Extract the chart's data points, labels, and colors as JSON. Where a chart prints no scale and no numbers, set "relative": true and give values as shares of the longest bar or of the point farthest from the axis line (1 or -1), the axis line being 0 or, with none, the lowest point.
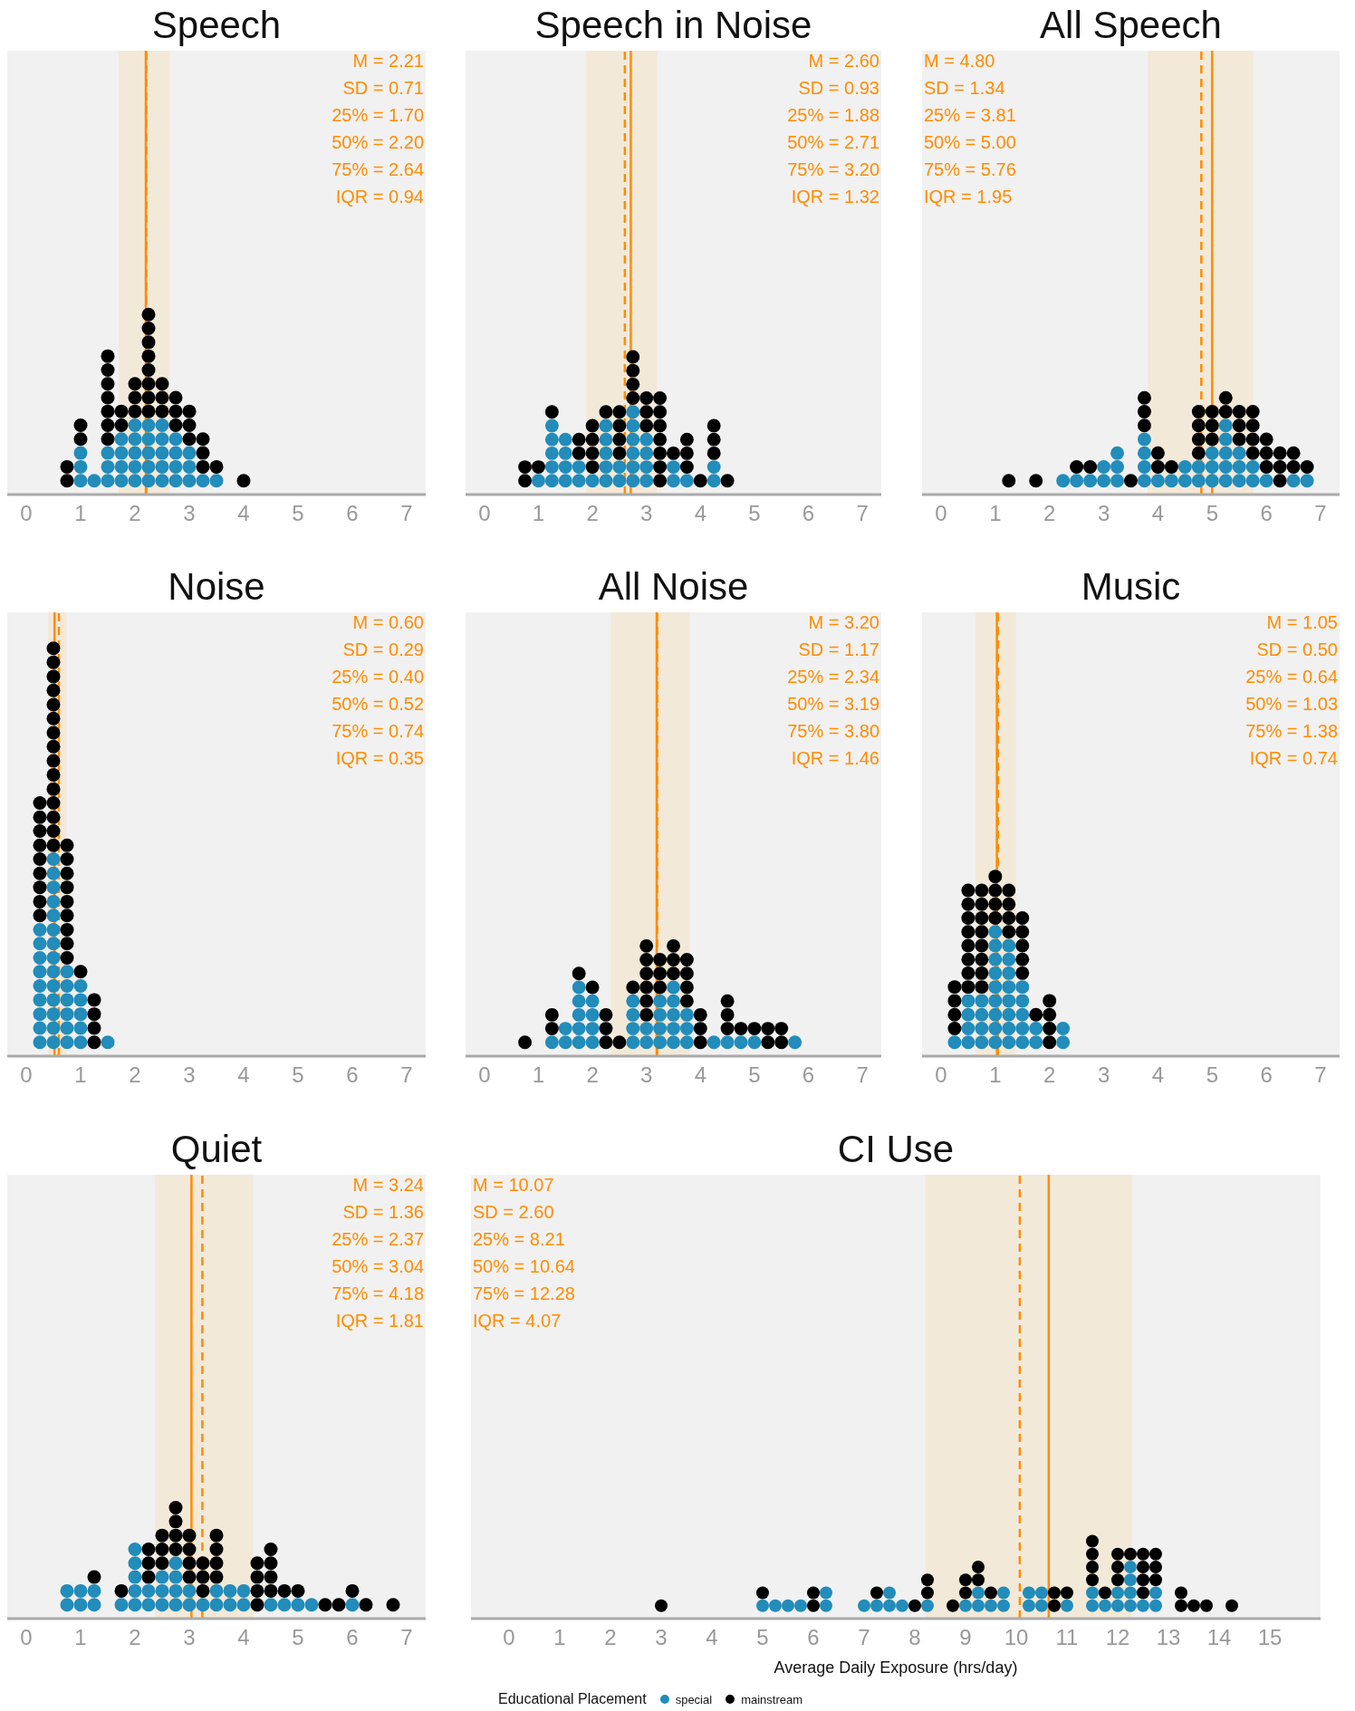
{
  "chart_data": [
    {
      "type": "scatter",
      "title": "Speech",
      "relative": true,
      "marker": "circle",
      "xlim": [
        -0.35,
        7.35
      ],
      "xticks": [
        0,
        1,
        2,
        3,
        4,
        5,
        6,
        7
      ],
      "bands": [
        {
          "axis": "x",
          "from": 1.7,
          "to": 2.64,
          "color": "#f3e9d9"
        }
      ],
      "ref_lines": [
        {
          "axis": "x",
          "value": 2.2,
          "line_style": "solid",
          "color": "#ff8c00"
        },
        {
          "axis": "x",
          "value": 2.21,
          "line_style": "dashed",
          "color": "#ff8c00"
        }
      ],
      "annotations": [
        "M = 2.21",
        "SD = 0.71",
        "25% = 1.70",
        "50% = 2.20",
        "75% = 2.64",
        "IQR = 0.94"
      ],
      "series": [
        {
          "color": "#228cba",
          "x": [
            1,
            1,
            1,
            1.25,
            1.5,
            1.5,
            1.5,
            1.75,
            1.75,
            1.75,
            1.75,
            2,
            2,
            2,
            2,
            2,
            2.25,
            2.25,
            2.25,
            2.25,
            2.25,
            2.5,
            2.5,
            2.5,
            2.5,
            2.5,
            2.75,
            2.75,
            2.75,
            2.75,
            3,
            3,
            3,
            3.25,
            3.5
          ],
          "values": [
            0.077,
            0.154,
            0.231,
            0.077,
            0.077,
            0.154,
            0.231,
            0.077,
            0.154,
            0.231,
            0.308,
            0.077,
            0.154,
            0.231,
            0.308,
            0.385,
            0.077,
            0.154,
            0.231,
            0.308,
            0.385,
            0.077,
            0.154,
            0.231,
            0.308,
            0.385,
            0.077,
            0.154,
            0.231,
            0.308,
            0.077,
            0.154,
            0.231,
            0.077,
            0.077
          ]
        },
        {
          "color": "#000000",
          "x": [
            0.75,
            0.75,
            1,
            1,
            1.5,
            1.5,
            1.5,
            1.5,
            1.5,
            1.5,
            1.5,
            1.75,
            1.75,
            2,
            2,
            2,
            2.25,
            2.25,
            2.25,
            2.25,
            2.25,
            2.25,
            2.25,
            2.25,
            2.5,
            2.5,
            2.5,
            2.75,
            2.75,
            2.75,
            3,
            3,
            3,
            3.25,
            3.25,
            3.25,
            3.5,
            4
          ],
          "values": [
            0.077,
            0.154,
            0.308,
            0.385,
            0.308,
            0.385,
            0.462,
            0.538,
            0.615,
            0.692,
            0.769,
            0.385,
            0.462,
            0.462,
            0.538,
            0.615,
            0.462,
            0.538,
            0.615,
            0.692,
            0.769,
            0.846,
            0.923,
            1,
            0.462,
            0.538,
            0.615,
            0.385,
            0.462,
            0.538,
            0.308,
            0.385,
            0.462,
            0.154,
            0.231,
            0.308,
            0.154,
            0.077
          ]
        }
      ]
    },
    {
      "type": "scatter",
      "title": "Speech in Noise",
      "relative": true,
      "marker": "circle",
      "xlim": [
        -0.35,
        7.35
      ],
      "xticks": [
        0,
        1,
        2,
        3,
        4,
        5,
        6,
        7
      ],
      "bands": [
        {
          "axis": "x",
          "from": 1.88,
          "to": 3.2,
          "color": "#f3e9d9"
        }
      ],
      "ref_lines": [
        {
          "axis": "x",
          "value": 2.71,
          "line_style": "solid",
          "color": "#ff8c00"
        },
        {
          "axis": "x",
          "value": 2.6,
          "line_style": "dashed",
          "color": "#ff8c00"
        }
      ],
      "annotations": [
        "M = 2.60",
        "SD = 0.93",
        "25% = 1.88",
        "50% = 2.71",
        "75% = 3.20",
        "IQR = 1.32"
      ],
      "series": [
        {
          "color": "#228cba",
          "x": [
            1,
            1.25,
            1.25,
            1.25,
            1.25,
            1.25,
            1.5,
            1.5,
            1.5,
            1.5,
            1.75,
            1.75,
            2,
            2.25,
            2.25,
            2.25,
            2.25,
            2.25,
            2.5,
            2.5,
            2.75,
            2.75,
            2.75,
            2.75,
            2.75,
            2.75,
            3,
            3,
            3,
            3,
            3.5,
            3.5,
            3.75,
            4.25,
            4.25
          ],
          "values": [
            0.1,
            0.1,
            0.2,
            0.3,
            0.4,
            0.5,
            0.1,
            0.2,
            0.3,
            0.4,
            0.1,
            0.2,
            0.1,
            0.1,
            0.2,
            0.3,
            0.4,
            0.5,
            0.1,
            0.2,
            0.1,
            0.2,
            0.3,
            0.4,
            0.5,
            0.6,
            0.1,
            0.2,
            0.3,
            0.4,
            0.1,
            0.2,
            0.1,
            0.1,
            0.2
          ]
        },
        {
          "color": "#000000",
          "x": [
            0.75,
            0.75,
            1,
            1.25,
            1.75,
            1.75,
            2,
            2,
            2,
            2,
            2.25,
            2.5,
            2.5,
            2.5,
            2.5,
            2.75,
            2.75,
            2.75,
            2.75,
            3,
            3,
            3,
            3.25,
            3.25,
            3.25,
            3.25,
            3.25,
            3.25,
            3.25,
            3.5,
            3.75,
            3.75,
            3.75,
            4,
            4.25,
            4.25,
            4.25,
            4.5
          ],
          "values": [
            0.1,
            0.2,
            0.2,
            0.6,
            0.3,
            0.4,
            0.2,
            0.3,
            0.4,
            0.5,
            0.6,
            0.3,
            0.4,
            0.5,
            0.6,
            0.7,
            0.8,
            0.9,
            1,
            0.5,
            0.6,
            0.7,
            0.1,
            0.2,
            0.3,
            0.4,
            0.5,
            0.6,
            0.7,
            0.3,
            0.2,
            0.3,
            0.4,
            0.1,
            0.3,
            0.4,
            0.5,
            0.1
          ]
        }
      ]
    },
    {
      "type": "scatter",
      "title": "All Speech",
      "relative": true,
      "marker": "circle",
      "xlim": [
        -0.35,
        7.35
      ],
      "xticks": [
        0,
        1,
        2,
        3,
        4,
        5,
        6,
        7
      ],
      "bands": [
        {
          "axis": "x",
          "from": 3.81,
          "to": 5.76,
          "color": "#f3e9d9"
        }
      ],
      "ref_lines": [
        {
          "axis": "x",
          "value": 5.0,
          "line_style": "solid",
          "color": "#ff8c00"
        },
        {
          "axis": "x",
          "value": 4.8,
          "line_style": "dashed",
          "color": "#ff8c00"
        }
      ],
      "annotations": [
        "M = 4.80",
        "SD = 1.34",
        "25% = 3.81",
        "50% = 5.00",
        "75% = 5.76",
        "IQR = 1.95"
      ],
      "series": [
        {
          "color": "#228cba",
          "x": [
            2.25,
            2.5,
            2.75,
            3,
            3,
            3.25,
            3.25,
            3.25,
            3.75,
            3.75,
            3.75,
            3.75,
            4,
            4.25,
            4.5,
            4.5,
            4.75,
            4.75,
            5,
            5,
            5,
            5.25,
            5.25,
            5.25,
            5.25,
            5.25,
            5.5,
            5.5,
            5.5,
            5.75,
            5.75,
            6,
            6.5,
            6.75
          ],
          "values": [
            0.143,
            0.143,
            0.143,
            0.143,
            0.286,
            0.143,
            0.286,
            0.429,
            0.143,
            0.286,
            0.429,
            0.571,
            0.143,
            0.143,
            0.143,
            0.286,
            0.143,
            0.286,
            0.143,
            0.286,
            0.429,
            0.143,
            0.286,
            0.429,
            0.571,
            0.714,
            0.143,
            0.286,
            0.429,
            0.143,
            0.286,
            0.143,
            0.143,
            0.143
          ]
        },
        {
          "color": "#000000",
          "x": [
            1.25,
            1.75,
            2.5,
            2.75,
            3.5,
            3.75,
            3.75,
            3.75,
            4,
            4,
            4.25,
            4.75,
            4.75,
            4.75,
            4.75,
            5,
            5,
            5,
            5.25,
            5.25,
            5.5,
            5.5,
            5.5,
            5.75,
            5.75,
            5.75,
            5.75,
            6,
            6,
            6,
            6.25,
            6.25,
            6.25,
            6.5,
            6.5,
            6.75
          ],
          "values": [
            0.143,
            0.143,
            0.286,
            0.286,
            0.143,
            0.714,
            0.857,
            1,
            0.286,
            0.429,
            0.286,
            0.429,
            0.571,
            0.714,
            0.857,
            0.571,
            0.714,
            0.857,
            0.857,
            1,
            0.571,
            0.714,
            0.857,
            0.429,
            0.571,
            0.714,
            0.857,
            0.286,
            0.429,
            0.571,
            0.143,
            0.286,
            0.429,
            0.286,
            0.429,
            0.286
          ]
        }
      ]
    },
    {
      "type": "scatter",
      "title": "Noise",
      "relative": true,
      "marker": "circle",
      "xlim": [
        -0.35,
        7.35
      ],
      "xticks": [
        0,
        1,
        2,
        3,
        4,
        5,
        6,
        7
      ],
      "bands": [
        {
          "axis": "x",
          "from": 0.4,
          "to": 0.74,
          "color": "#f3e9d9"
        }
      ],
      "ref_lines": [
        {
          "axis": "x",
          "value": 0.52,
          "line_style": "solid",
          "color": "#ff8c00"
        },
        {
          "axis": "x",
          "value": 0.6,
          "line_style": "dashed",
          "color": "#ff8c00"
        }
      ],
      "annotations": [
        "M = 0.60",
        "SD = 0.29",
        "25% = 0.40",
        "50% = 0.52",
        "75% = 0.74",
        "IQR = 0.35"
      ],
      "series": [
        {
          "color": "#228cba",
          "x": [
            0.25,
            0.25,
            0.25,
            0.25,
            0.25,
            0.25,
            0.25,
            0.25,
            0.25,
            0.5,
            0.5,
            0.5,
            0.5,
            0.5,
            0.5,
            0.5,
            0.5,
            0.5,
            0.5,
            0.5,
            0.5,
            0.5,
            0.5,
            0.75,
            0.75,
            0.75,
            0.75,
            0.75,
            0.75,
            1,
            1,
            1,
            1,
            1,
            1.5
          ],
          "values": [
            0.034,
            0.069,
            0.103,
            0.138,
            0.172,
            0.207,
            0.241,
            0.276,
            0.31,
            0.034,
            0.069,
            0.103,
            0.138,
            0.172,
            0.207,
            0.241,
            0.276,
            0.31,
            0.345,
            0.379,
            0.414,
            0.448,
            0.483,
            0.034,
            0.069,
            0.103,
            0.138,
            0.172,
            0.207,
            0.034,
            0.069,
            0.103,
            0.138,
            0.172,
            0.034
          ]
        },
        {
          "color": "#000000",
          "x": [
            0.25,
            0.25,
            0.25,
            0.25,
            0.25,
            0.25,
            0.25,
            0.25,
            0.25,
            0.5,
            0.5,
            0.5,
            0.5,
            0.5,
            0.5,
            0.5,
            0.5,
            0.5,
            0.5,
            0.5,
            0.5,
            0.5,
            0.5,
            0.5,
            0.75,
            0.75,
            0.75,
            0.75,
            0.75,
            0.75,
            0.75,
            0.75,
            0.75,
            1,
            1.25,
            1.25,
            1.25,
            1.25
          ],
          "values": [
            0.345,
            0.379,
            0.414,
            0.448,
            0.483,
            0.517,
            0.552,
            0.586,
            0.621,
            0.517,
            0.552,
            0.586,
            0.621,
            0.655,
            0.69,
            0.724,
            0.759,
            0.793,
            0.828,
            0.862,
            0.897,
            0.931,
            0.966,
            1,
            0.241,
            0.276,
            0.31,
            0.345,
            0.379,
            0.414,
            0.448,
            0.483,
            0.517,
            0.207,
            0.034,
            0.069,
            0.103,
            0.138
          ]
        }
      ]
    },
    {
      "type": "scatter",
      "title": "All Noise",
      "relative": true,
      "marker": "circle",
      "xlim": [
        -0.35,
        7.35
      ],
      "xticks": [
        0,
        1,
        2,
        3,
        4,
        5,
        6,
        7
      ],
      "bands": [
        {
          "axis": "x",
          "from": 2.34,
          "to": 3.8,
          "color": "#f3e9d9"
        }
      ],
      "ref_lines": [
        {
          "axis": "x",
          "value": 3.19,
          "line_style": "solid",
          "color": "#ff8c00"
        },
        {
          "axis": "x",
          "value": 3.2,
          "line_style": "dashed",
          "color": "#ff8c00"
        }
      ],
      "annotations": [
        "M = 3.20",
        "SD = 1.17",
        "25% = 2.34",
        "50% = 3.19",
        "75% = 3.80",
        "IQR = 1.46"
      ],
      "series": [
        {
          "color": "#228cba",
          "x": [
            1.25,
            1.5,
            1.5,
            1.75,
            1.75,
            1.75,
            1.75,
            1.75,
            2,
            2,
            2,
            2,
            2.75,
            2.75,
            2.75,
            2.75,
            3,
            3,
            3.25,
            3.25,
            3.25,
            3.25,
            3.5,
            3.5,
            3.5,
            3.5,
            3.5,
            3.75,
            3.75,
            3.75,
            4.25,
            4.5,
            4.75,
            5,
            5.75
          ],
          "values": [
            0.125,
            0.125,
            0.25,
            0.125,
            0.25,
            0.375,
            0.5,
            0.625,
            0.125,
            0.25,
            0.375,
            0.5,
            0.125,
            0.25,
            0.375,
            0.5,
            0.125,
            0.25,
            0.125,
            0.25,
            0.375,
            0.5,
            0.125,
            0.25,
            0.375,
            0.5,
            0.625,
            0.125,
            0.25,
            0.375,
            0.125,
            0.125,
            0.125,
            0.125,
            0.125
          ]
        },
        {
          "color": "#000000",
          "x": [
            0.75,
            1.25,
            1.25,
            1.75,
            2,
            2.25,
            2.25,
            2.25,
            2.5,
            2.75,
            3,
            3,
            3,
            3,
            3,
            3,
            3.25,
            3.25,
            3.25,
            3.5,
            3.5,
            3.5,
            3.75,
            3.75,
            3.75,
            3.75,
            4,
            4,
            4,
            4.5,
            4.5,
            4.5,
            4.75,
            5,
            5.25,
            5.25,
            5.5,
            5.5
          ],
          "values": [
            0.125,
            0.25,
            0.375,
            0.75,
            0.625,
            0.125,
            0.25,
            0.375,
            0.125,
            0.625,
            0.375,
            0.5,
            0.625,
            0.75,
            0.875,
            1,
            0.625,
            0.75,
            0.875,
            0.75,
            0.875,
            1,
            0.5,
            0.625,
            0.75,
            0.875,
            0.125,
            0.25,
            0.375,
            0.25,
            0.375,
            0.5,
            0.25,
            0.25,
            0.125,
            0.25,
            0.125,
            0.25
          ]
        }
      ]
    },
    {
      "type": "scatter",
      "title": "Music",
      "relative": true,
      "marker": "circle",
      "xlim": [
        -0.35,
        7.35
      ],
      "xticks": [
        0,
        1,
        2,
        3,
        4,
        5,
        6,
        7
      ],
      "bands": [
        {
          "axis": "x",
          "from": 0.64,
          "to": 1.38,
          "color": "#f3e9d9"
        }
      ],
      "ref_lines": [
        {
          "axis": "x",
          "value": 1.03,
          "line_style": "solid",
          "color": "#ff8c00"
        },
        {
          "axis": "x",
          "value": 1.05,
          "line_style": "dashed",
          "color": "#ff8c00"
        }
      ],
      "annotations": [
        "M = 1.05",
        "SD = 0.50",
        "25% = 0.64",
        "50% = 1.03",
        "75% = 1.38",
        "IQR = 0.74"
      ],
      "series": [
        {
          "color": "#228cba",
          "x": [
            0.25,
            0.5,
            0.5,
            0.5,
            0.5,
            0.75,
            0.75,
            0.75,
            0.75,
            1,
            1,
            1,
            1,
            1,
            1,
            1,
            1,
            1,
            1.25,
            1.25,
            1.25,
            1.25,
            1.25,
            1.25,
            1.25,
            1.25,
            1.5,
            1.5,
            1.5,
            1.5,
            1.5,
            1.75,
            1.75,
            2.25,
            2.25
          ],
          "values": [
            0.077,
            0.077,
            0.154,
            0.231,
            0.308,
            0.077,
            0.154,
            0.231,
            0.308,
            0.077,
            0.154,
            0.231,
            0.308,
            0.385,
            0.462,
            0.538,
            0.615,
            0.692,
            0.077,
            0.154,
            0.231,
            0.308,
            0.385,
            0.462,
            0.538,
            0.615,
            0.077,
            0.154,
            0.231,
            0.308,
            0.385,
            0.077,
            0.154,
            0.077,
            0.154
          ]
        },
        {
          "color": "#000000",
          "x": [
            0.25,
            0.25,
            0.25,
            0.25,
            0.5,
            0.5,
            0.5,
            0.5,
            0.5,
            0.5,
            0.5,
            0.5,
            0.75,
            0.75,
            0.75,
            0.75,
            0.75,
            0.75,
            0.75,
            0.75,
            1,
            1,
            1,
            1,
            1.25,
            1.25,
            1.25,
            1.25,
            1.5,
            1.5,
            1.5,
            1.5,
            1.5,
            1.75,
            2,
            2,
            2,
            2
          ],
          "values": [
            0.154,
            0.231,
            0.308,
            0.385,
            0.385,
            0.462,
            0.538,
            0.615,
            0.692,
            0.769,
            0.846,
            0.923,
            0.385,
            0.462,
            0.538,
            0.615,
            0.692,
            0.769,
            0.846,
            0.923,
            0.769,
            0.846,
            0.923,
            1,
            0.692,
            0.769,
            0.846,
            0.923,
            0.462,
            0.538,
            0.615,
            0.692,
            0.769,
            0.231,
            0.077,
            0.154,
            0.231,
            0.308
          ]
        }
      ]
    },
    {
      "type": "scatter",
      "title": "Quiet",
      "relative": true,
      "marker": "circle",
      "xlim": [
        -0.35,
        7.35
      ],
      "xticks": [
        0,
        1,
        2,
        3,
        4,
        5,
        6,
        7
      ],
      "bands": [
        {
          "axis": "x",
          "from": 2.37,
          "to": 4.18,
          "color": "#f3e9d9"
        }
      ],
      "ref_lines": [
        {
          "axis": "x",
          "value": 3.04,
          "line_style": "solid",
          "color": "#ff8c00"
        },
        {
          "axis": "x",
          "value": 3.24,
          "line_style": "dashed",
          "color": "#ff8c00"
        }
      ],
      "annotations": [
        "M = 3.24",
        "SD = 1.36",
        "25% = 2.37",
        "50% = 3.04",
        "75% = 4.18",
        "IQR = 1.81"
      ],
      "series": [
        {
          "color": "#228cba",
          "x": [
            0.75,
            0.75,
            1,
            1,
            1.25,
            1.25,
            1.75,
            2,
            2,
            2,
            2,
            2,
            2.25,
            2.25,
            2.5,
            2.5,
            2.5,
            2.75,
            2.75,
            2.75,
            2.75,
            3,
            3,
            3.25,
            3.5,
            3.5,
            3.75,
            3.75,
            4,
            4,
            4.5,
            4.75,
            5,
            5.25,
            6
          ],
          "values": [
            0.125,
            0.25,
            0.125,
            0.25,
            0.125,
            0.25,
            0.125,
            0.125,
            0.25,
            0.375,
            0.5,
            0.625,
            0.125,
            0.25,
            0.125,
            0.25,
            0.375,
            0.125,
            0.25,
            0.375,
            0.5,
            0.125,
            0.25,
            0.125,
            0.125,
            0.25,
            0.125,
            0.25,
            0.125,
            0.25,
            0.125,
            0.125,
            0.125,
            0.125,
            0.125
          ]
        },
        {
          "color": "#000000",
          "x": [
            1.25,
            1.75,
            2.25,
            2.25,
            2.25,
            2.5,
            2.5,
            2.5,
            2.75,
            2.75,
            2.75,
            2.75,
            3,
            3,
            3,
            3,
            3.25,
            3.25,
            3.25,
            3.5,
            3.5,
            3.5,
            3.5,
            4.25,
            4.25,
            4.25,
            4.25,
            4.5,
            4.5,
            4.5,
            4.5,
            4.75,
            5,
            5.5,
            5.75,
            6,
            6.25,
            6.75
          ],
          "values": [
            0.375,
            0.25,
            0.375,
            0.5,
            0.625,
            0.5,
            0.625,
            0.75,
            0.625,
            0.75,
            0.875,
            1,
            0.375,
            0.5,
            0.625,
            0.75,
            0.25,
            0.375,
            0.5,
            0.375,
            0.5,
            0.625,
            0.75,
            0.125,
            0.25,
            0.375,
            0.5,
            0.25,
            0.375,
            0.5,
            0.625,
            0.25,
            0.25,
            0.125,
            0.125,
            0.25,
            0.125,
            0.125
          ]
        }
      ]
    },
    {
      "type": "scatter",
      "title": "CI Use",
      "relative": true,
      "marker": "circle",
      "xlim": [
        -0.75,
        16
      ],
      "xticks": [
        0,
        1,
        2,
        3,
        4,
        5,
        6,
        7,
        8,
        9,
        10,
        11,
        12,
        13,
        14,
        15
      ],
      "xlabel": "Average Daily Exposure (hrs/day)",
      "legend": "bottom",
      "legend_title": "Educational Placement",
      "bands": [
        {
          "axis": "x",
          "from": 8.21,
          "to": 12.28,
          "color": "#f3e9d9"
        }
      ],
      "ref_lines": [
        {
          "axis": "x",
          "value": 10.64,
          "line_style": "solid",
          "color": "#ff8c00"
        },
        {
          "axis": "x",
          "value": 10.07,
          "line_style": "dashed",
          "color": "#ff8c00"
        }
      ],
      "annotations": [
        "M = 10.07",
        "SD = 2.60",
        "25% = 8.21",
        "50% = 10.64",
        "75% = 12.28",
        "IQR = 4.07"
      ],
      "series": [
        {
          "name": "special",
          "color": "#228cba",
          "x": [
            5,
            5.25,
            5.5,
            5.75,
            6.25,
            6.25,
            7,
            7.25,
            7.5,
            7.5,
            7.75,
            8.25,
            9,
            9.25,
            9.25,
            9.5,
            9.75,
            9.75,
            10.25,
            10.25,
            10.5,
            10.5,
            11,
            11.5,
            11.5,
            11.75,
            12,
            12,
            12.25,
            12.25,
            12.25,
            12.25,
            12.5,
            12.75,
            12.75
          ],
          "values": [
            0.167,
            0.167,
            0.167,
            0.167,
            0.167,
            0.333,
            0.167,
            0.167,
            0.167,
            0.333,
            0.167,
            0.167,
            0.167,
            0.167,
            0.333,
            0.167,
            0.167,
            0.333,
            0.167,
            0.333,
            0.167,
            0.333,
            0.167,
            0.167,
            0.333,
            0.167,
            0.167,
            0.333,
            0.167,
            0.333,
            0.5,
            0.667,
            0.167,
            0.167,
            0.333
          ]
        },
        {
          "name": "mainstream",
          "color": "#000000",
          "x": [
            3,
            5,
            6,
            6,
            7.25,
            8,
            8.25,
            8.25,
            8.75,
            9,
            9,
            9.25,
            9.25,
            9.5,
            10.75,
            10.75,
            11,
            11.5,
            11.5,
            11.5,
            11.5,
            11.75,
            12,
            12,
            12,
            12.25,
            12.5,
            12.5,
            12.5,
            12.5,
            12.75,
            12.75,
            12.75,
            13.25,
            13.25,
            13.5,
            13.75,
            14.25
          ],
          "values": [
            0.167,
            0.333,
            0.167,
            0.333,
            0.333,
            0.167,
            0.333,
            0.5,
            0.167,
            0.333,
            0.5,
            0.5,
            0.667,
            0.333,
            0.167,
            0.333,
            0.333,
            0.5,
            0.667,
            0.833,
            1,
            0.333,
            0.5,
            0.667,
            0.833,
            0.833,
            0.333,
            0.5,
            0.667,
            0.833,
            0.5,
            0.667,
            0.833,
            0.167,
            0.333,
            0.167,
            0.167,
            0.167
          ]
        }
      ]
    }
  ]
}
